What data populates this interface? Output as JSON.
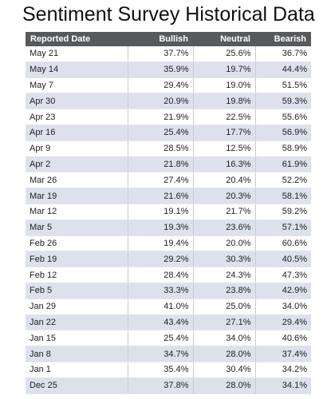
{
  "title": "Sentiment Survey Historical Data",
  "table": {
    "header": [
      "Reported Date",
      "Bullish",
      "Neutral",
      "Bearish"
    ],
    "rows": [
      [
        "May 21",
        "37.7%",
        "25.6%",
        "36.7%"
      ],
      [
        "May 14",
        "35.9%",
        "19.7%",
        "44.4%"
      ],
      [
        "May 7",
        "29.4%",
        "19.0%",
        "51.5%"
      ],
      [
        "Apr 30",
        "20.9%",
        "19.8%",
        "59.3%"
      ],
      [
        "Apr 23",
        "21.9%",
        "22.5%",
        "55.6%"
      ],
      [
        "Apr 16",
        "25.4%",
        "17.7%",
        "56.9%"
      ],
      [
        "Apr 9",
        "28.5%",
        "12.5%",
        "58.9%"
      ],
      [
        "Apr 2",
        "21.8%",
        "16.3%",
        "61.9%"
      ],
      [
        "Mar 26",
        "27.4%",
        "20.4%",
        "52.2%"
      ],
      [
        "Mar 19",
        "21.6%",
        "20.3%",
        "58.1%"
      ],
      [
        "Mar 12",
        "19.1%",
        "21.7%",
        "59.2%"
      ],
      [
        "Mar 5",
        "19.3%",
        "23.6%",
        "57.1%"
      ],
      [
        "Feb 26",
        "19.4%",
        "20.0%",
        "60.6%"
      ],
      [
        "Feb 19",
        "29.2%",
        "30.3%",
        "40.5%"
      ],
      [
        "Feb 12",
        "28.4%",
        "24.3%",
        "47.3%"
      ],
      [
        "Feb 5",
        "33.3%",
        "23.8%",
        "42.9%"
      ],
      [
        "Jan 29",
        "41.0%",
        "25.0%",
        "34.0%"
      ],
      [
        "Jan 22",
        "43.4%",
        "27.1%",
        "29.4%"
      ],
      [
        "Jan 15",
        "25.4%",
        "34.0%",
        "40.6%"
      ],
      [
        "Jan 8",
        "34.7%",
        "28.0%",
        "37.4%"
      ],
      [
        "Jan 1",
        "35.4%",
        "30.4%",
        "34.2%"
      ],
      [
        "Dec 25",
        "37.8%",
        "28.0%",
        "34.1%"
      ]
    ]
  }
}
